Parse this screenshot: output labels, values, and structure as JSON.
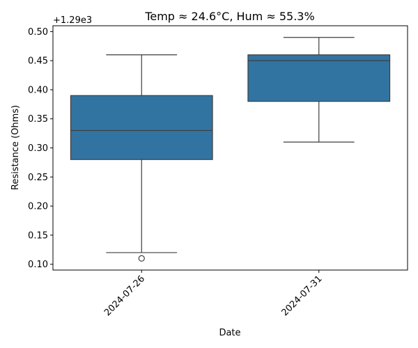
{
  "chart_data": {
    "type": "box",
    "title": "Temp ≈ 24.6°C, Hum ≈ 55.3%",
    "xlabel": "Date",
    "ylabel": "Resistance (Ohms)",
    "offset_text": "+1.29e3",
    "y_offset": 1290,
    "ylim": [
      1290.09,
      1290.51
    ],
    "y_ticks": [
      0.1,
      0.15,
      0.2,
      0.25,
      0.3,
      0.35,
      0.4,
      0.45,
      0.5
    ],
    "y_tick_labels": [
      "0.10",
      "0.15",
      "0.20",
      "0.25",
      "0.30",
      "0.35",
      "0.40",
      "0.45",
      "0.50"
    ],
    "categories": [
      "2024-07-26",
      "2024-07-31"
    ],
    "boxes": [
      {
        "category": "2024-07-26",
        "whisker_low": 1290.12,
        "q1": 1290.28,
        "median": 1290.33,
        "q3": 1290.39,
        "whisker_high": 1290.46,
        "outliers": [
          1290.11
        ]
      },
      {
        "category": "2024-07-31",
        "whisker_low": 1290.31,
        "q1": 1290.38,
        "median": 1290.45,
        "q3": 1290.46,
        "whisker_high": 1290.49,
        "outliers": []
      }
    ],
    "box_color": "#3274a1",
    "line_color": "#3d3d3d",
    "grid": false,
    "legend": "none"
  }
}
